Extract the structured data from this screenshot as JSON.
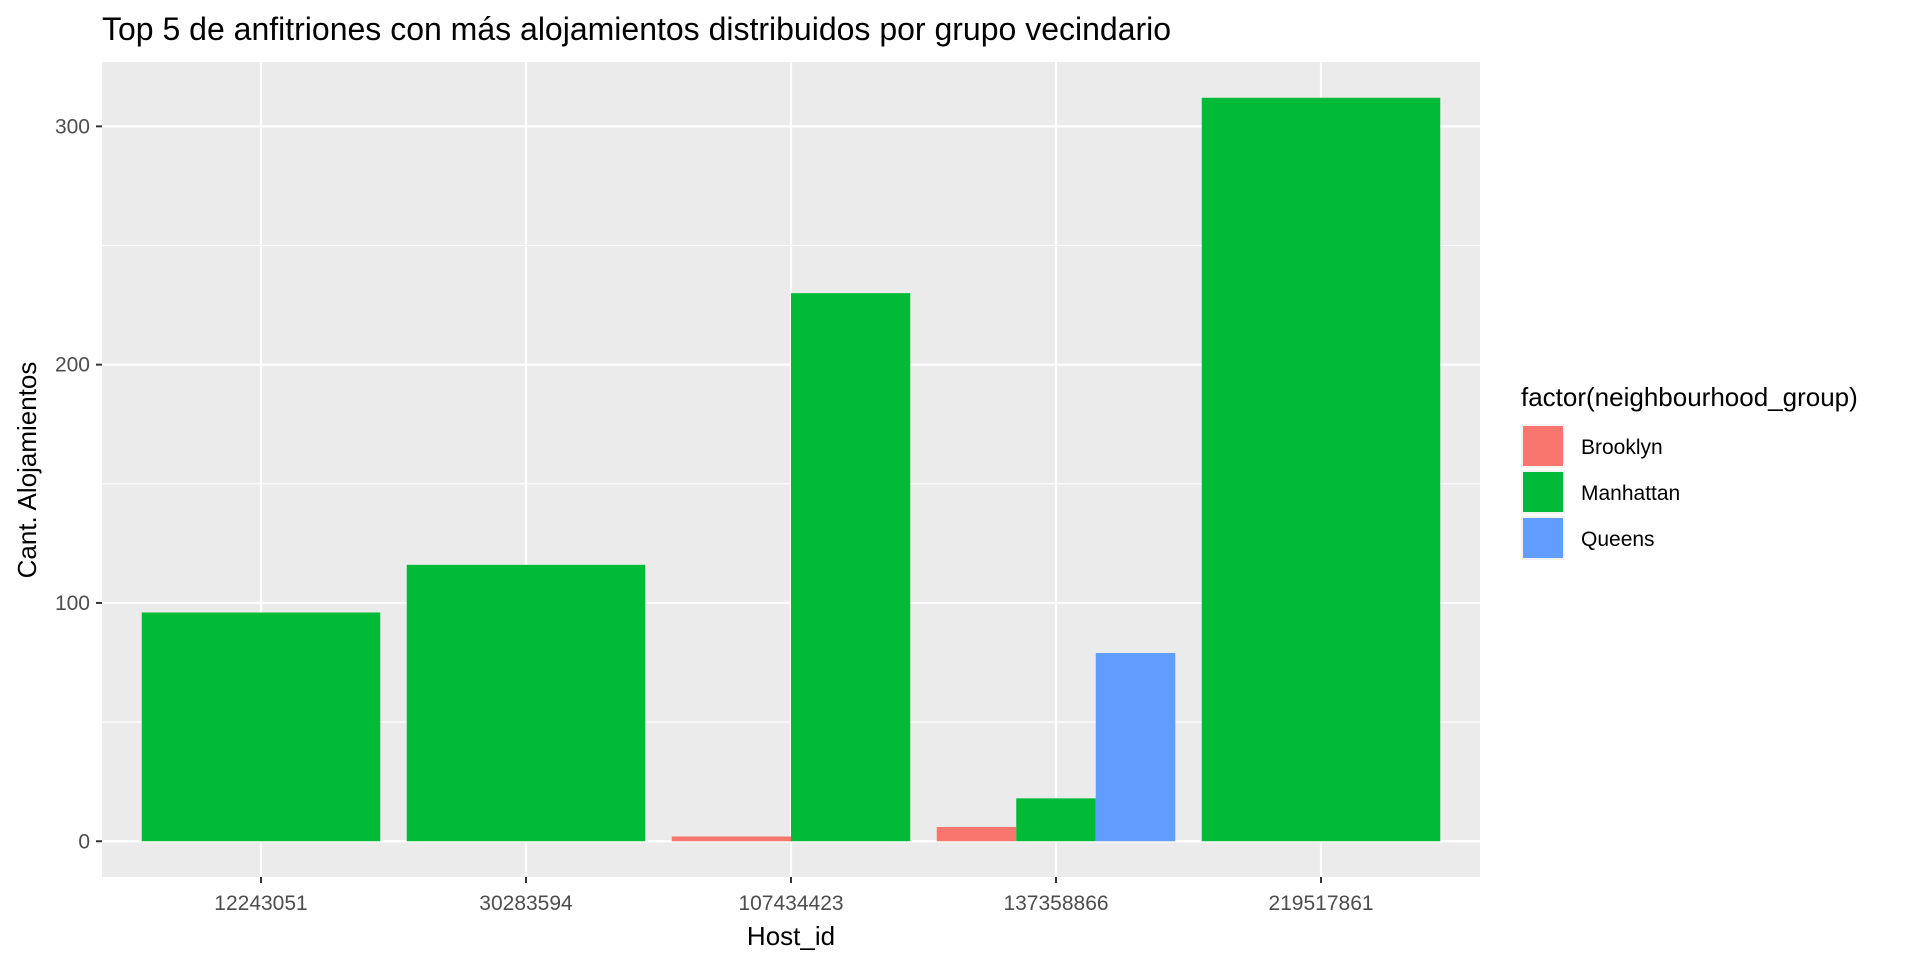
{
  "chart_data": {
    "type": "bar",
    "title": "Top 5 de anfitriones con más alojamientos distribuidos por grupo vecindario",
    "xlabel": "Host_id",
    "ylabel": "Cant. Alojamientos",
    "categories": [
      "12243051",
      "30283594",
      "107434423",
      "137358866",
      "219517861"
    ],
    "ylim": [
      -15,
      327
    ],
    "yticks": [
      0,
      100,
      200,
      300
    ],
    "grid": true,
    "legend": {
      "title": "factor(neighbourhood_group)",
      "position": "right"
    },
    "series": [
      {
        "name": "Brooklyn",
        "color": "#F8766D",
        "values": [
          null,
          null,
          2,
          6,
          null
        ]
      },
      {
        "name": "Manhattan",
        "color": "#00BA38",
        "values": [
          96,
          116,
          230,
          18,
          312
        ]
      },
      {
        "name": "Queens",
        "color": "#619CFF",
        "values": [
          null,
          null,
          null,
          79,
          null
        ]
      }
    ]
  }
}
